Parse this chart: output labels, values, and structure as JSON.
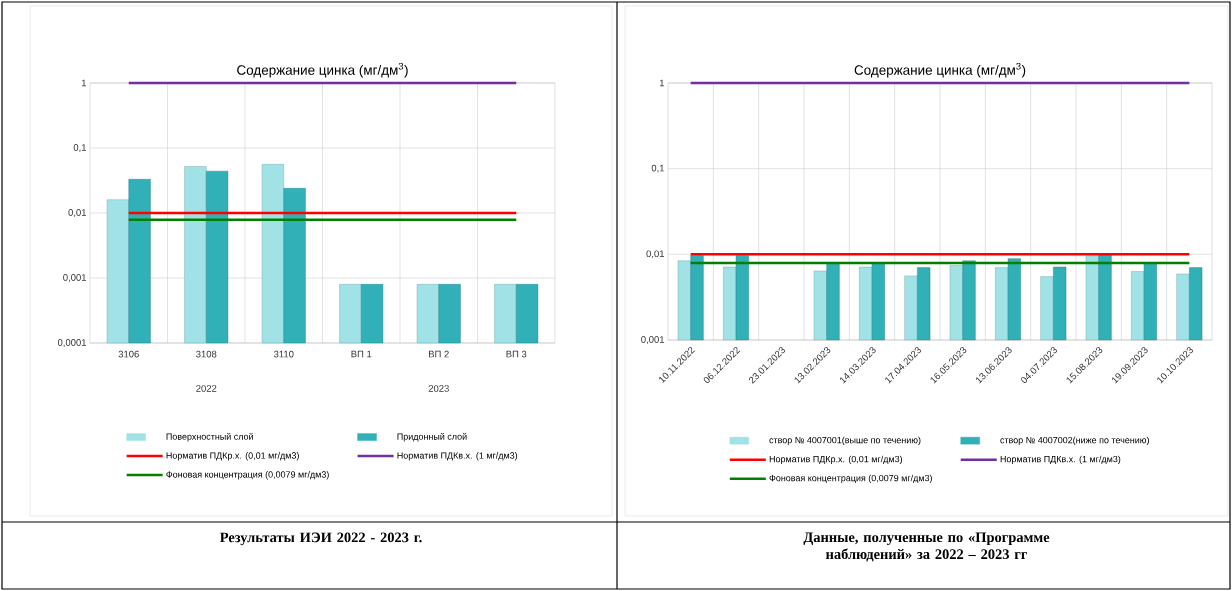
{
  "chart_data": [
    {
      "type": "bar",
      "title": "Содержание цинка (мг/дм$^{3}$)",
      "subtitle": "**Результаты ИЭИ 2022 - 2023 г.**",
      "categories": [
        "3106",
        "3108",
        "3110",
        "ВП 1",
        "ВП 2",
        "ВП 3"
      ],
      "annotations": [
        "2022",
        "2023"
      ],
      "series": [
        {
          "name": "Поверхностный слой",
          "color": "#a0e2e6",
          "values": [
            0.016,
            0.052,
            0.056,
            0.0008,
            0.0008,
            0.0008
          ]
        },
        {
          "name": "Придонный слой",
          "color": "#31b0b8",
          "values": [
            0.033,
            0.044,
            0.024,
            0.0008,
            0.0008,
            0.0008
          ]
        }
      ],
      "ref_lines": [
        {
          "axis": "y",
          "value": 0.01,
          "label": "Норматив ПДКр.х. (0,01 мг/дм3)",
          "color": "#ff0000"
        },
        {
          "axis": "y",
          "value": 1,
          "label": "Норматив ПДКв.х. (1 мг/дм3)",
          "color": "#7030a0"
        },
        {
          "axis": "y",
          "value": 0.0079,
          "label": "Фоновая концентрация (0,0079 мг/дм3)",
          "color": "#008000"
        }
      ],
      "log": true,
      "ylim": [
        0.0001,
        1
      ],
      "yticks": [
        {
          "value": 0.0001,
          "label": "0,0001"
        },
        {
          "value": 0.001,
          "label": "0,001"
        },
        {
          "value": 0.01,
          "label": "0,01"
        },
        {
          "value": 0.1,
          "label": "0,1"
        },
        1
      ],
      "grid": true,
      "legend": "bottom"
    },
    {
      "type": "bar",
      "title": "Содержание цинка (мг/дм$^{3}$)",
      "subtitle": "**Данные, полученные по «Программе наблюдений» за 2022 – 2023 гг**",
      "categories": [
        "10.11.2022",
        "06.12.2022",
        "23.01.2023",
        "13.02.2023",
        "14.03.2023",
        "17.04.2023",
        "16.05.2023",
        "13.06.2023",
        "04.07.2023",
        "15.08.2023",
        "19.09.2023",
        "10.10.2023"
      ],
      "series": [
        {
          "name": "створ № 4007001(выше по течению)",
          "color": "#a0e2e6",
          "values": [
            0.0084,
            0.0071,
            null,
            0.0064,
            0.0071,
            0.0056,
            0.0074,
            0.007,
            0.0055,
            0.0096,
            0.0063,
            0.0059
          ]
        },
        {
          "name": "створ № 4007002(ниже по течению)",
          "color": "#31b0b8",
          "values": [
            0.0097,
            0.0097,
            null,
            0.008,
            0.008,
            0.007,
            0.0084,
            0.0089,
            0.0071,
            0.0099,
            0.0079,
            0.007
          ]
        }
      ],
      "ref_lines": [
        {
          "axis": "y",
          "value": 0.01,
          "label": "Норматив ПДКр.х. (0,01 мг/дм3)",
          "color": "#ff0000"
        },
        {
          "axis": "y",
          "value": 1,
          "label": "Норматив ПДКв.х. (1 мг/дм3)",
          "color": "#7030a0"
        },
        {
          "axis": "y",
          "value": 0.0079,
          "label": "Фоновая концентрация (0,0079 мг/дм3)",
          "color": "#008000"
        }
      ],
      "log": true,
      "ylim": [
        0.001,
        1
      ],
      "yticks": [
        {
          "value": 0.001,
          "label": "0,001"
        },
        {
          "value": 0.01,
          "label": "0,01"
        },
        {
          "value": 0.1,
          "label": "0,1"
        },
        1
      ],
      "grid": true,
      "legend": "bottom"
    }
  ]
}
